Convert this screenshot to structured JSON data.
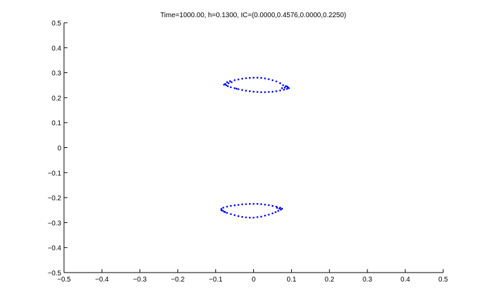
{
  "chart_data": {
    "type": "scatter",
    "title": "Time=1000.00, h=0.1300, IC=(0.0000,0.4576,0.0000,0.2250)",
    "xlabel": "",
    "ylabel": "",
    "xlim": [
      -0.5,
      0.5
    ],
    "ylim": [
      -0.5,
      0.5
    ],
    "xticks": [
      -0.5,
      -0.4,
      -0.3,
      -0.2,
      -0.1,
      0,
      0.1,
      0.2,
      0.3,
      0.4,
      0.5
    ],
    "yticks": [
      -0.5,
      -0.4,
      -0.3,
      -0.2,
      -0.1,
      0,
      0.1,
      0.2,
      0.3,
      0.4,
      0.5
    ],
    "xtick_labels": [
      "−0.5",
      "−0.4",
      "−0.3",
      "−0.2",
      "−0.1",
      "0",
      "0.1",
      "0.2",
      "0.3",
      "0.4",
      "0.5"
    ],
    "ytick_labels": [
      "−0.5",
      "−0.4",
      "−0.3",
      "−0.2",
      "−0.1",
      "0",
      "0.1",
      "0.2",
      "0.3",
      "0.4",
      "0.5"
    ],
    "grid": false,
    "marker_color": "#0000ff",
    "series": [
      {
        "points": [
          [
            -0.075,
            0.255
          ],
          [
            -0.07,
            0.262
          ],
          [
            -0.062,
            0.266
          ],
          [
            -0.05,
            0.27
          ],
          [
            -0.04,
            0.273
          ],
          [
            -0.03,
            0.276
          ],
          [
            -0.02,
            0.278
          ],
          [
            -0.01,
            0.279
          ],
          [
            0.0,
            0.28
          ],
          [
            0.01,
            0.28
          ],
          [
            0.02,
            0.279
          ],
          [
            0.03,
            0.277
          ],
          [
            0.04,
            0.274
          ],
          [
            0.05,
            0.27
          ],
          [
            0.06,
            0.265
          ],
          [
            0.07,
            0.258
          ],
          [
            0.078,
            0.25
          ],
          [
            0.085,
            0.246
          ],
          [
            0.09,
            0.242
          ],
          [
            0.093,
            0.238
          ],
          [
            0.088,
            0.235
          ],
          [
            0.08,
            0.232
          ],
          [
            0.07,
            0.229
          ],
          [
            0.06,
            0.226
          ],
          [
            0.05,
            0.224
          ],
          [
            0.04,
            0.223
          ],
          [
            0.03,
            0.222
          ],
          [
            0.02,
            0.222
          ],
          [
            0.01,
            0.223
          ],
          [
            0.0,
            0.224
          ],
          [
            -0.01,
            0.226
          ],
          [
            -0.02,
            0.228
          ],
          [
            -0.03,
            0.231
          ],
          [
            -0.04,
            0.234
          ],
          [
            -0.05,
            0.238
          ],
          [
            -0.06,
            0.242
          ],
          [
            -0.068,
            0.246
          ],
          [
            -0.078,
            0.252
          ],
          [
            -0.072,
            0.25
          ],
          [
            -0.066,
            0.258
          ],
          [
            -0.058,
            0.262
          ],
          [
            0.082,
            0.24
          ],
          [
            0.088,
            0.245
          ],
          [
            0.075,
            0.238
          ],
          [
            -0.045,
            0.236
          ]
        ]
      },
      {
        "points": [
          [
            -0.085,
            -0.245
          ],
          [
            -0.08,
            -0.24
          ],
          [
            -0.07,
            -0.236
          ],
          [
            -0.06,
            -0.233
          ],
          [
            -0.05,
            -0.231
          ],
          [
            -0.04,
            -0.229
          ],
          [
            -0.03,
            -0.227
          ],
          [
            -0.02,
            -0.226
          ],
          [
            -0.01,
            -0.225
          ],
          [
            0.0,
            -0.225
          ],
          [
            0.01,
            -0.225
          ],
          [
            0.02,
            -0.226
          ],
          [
            0.03,
            -0.228
          ],
          [
            0.04,
            -0.23
          ],
          [
            0.05,
            -0.233
          ],
          [
            0.06,
            -0.236
          ],
          [
            0.07,
            -0.24
          ],
          [
            0.075,
            -0.244
          ],
          [
            0.072,
            -0.248
          ],
          [
            0.065,
            -0.253
          ],
          [
            0.058,
            -0.258
          ],
          [
            0.05,
            -0.263
          ],
          [
            0.04,
            -0.268
          ],
          [
            0.03,
            -0.272
          ],
          [
            0.02,
            -0.276
          ],
          [
            0.01,
            -0.278
          ],
          [
            0.0,
            -0.28
          ],
          [
            -0.01,
            -0.28
          ],
          [
            -0.02,
            -0.279
          ],
          [
            -0.03,
            -0.277
          ],
          [
            -0.04,
            -0.274
          ],
          [
            -0.05,
            -0.27
          ],
          [
            -0.06,
            -0.266
          ],
          [
            -0.07,
            -0.261
          ],
          [
            -0.078,
            -0.256
          ],
          [
            -0.085,
            -0.25
          ],
          [
            -0.082,
            -0.252
          ],
          [
            0.068,
            -0.244
          ],
          [
            0.062,
            -0.241
          ],
          [
            -0.075,
            -0.258
          ]
        ]
      }
    ]
  }
}
